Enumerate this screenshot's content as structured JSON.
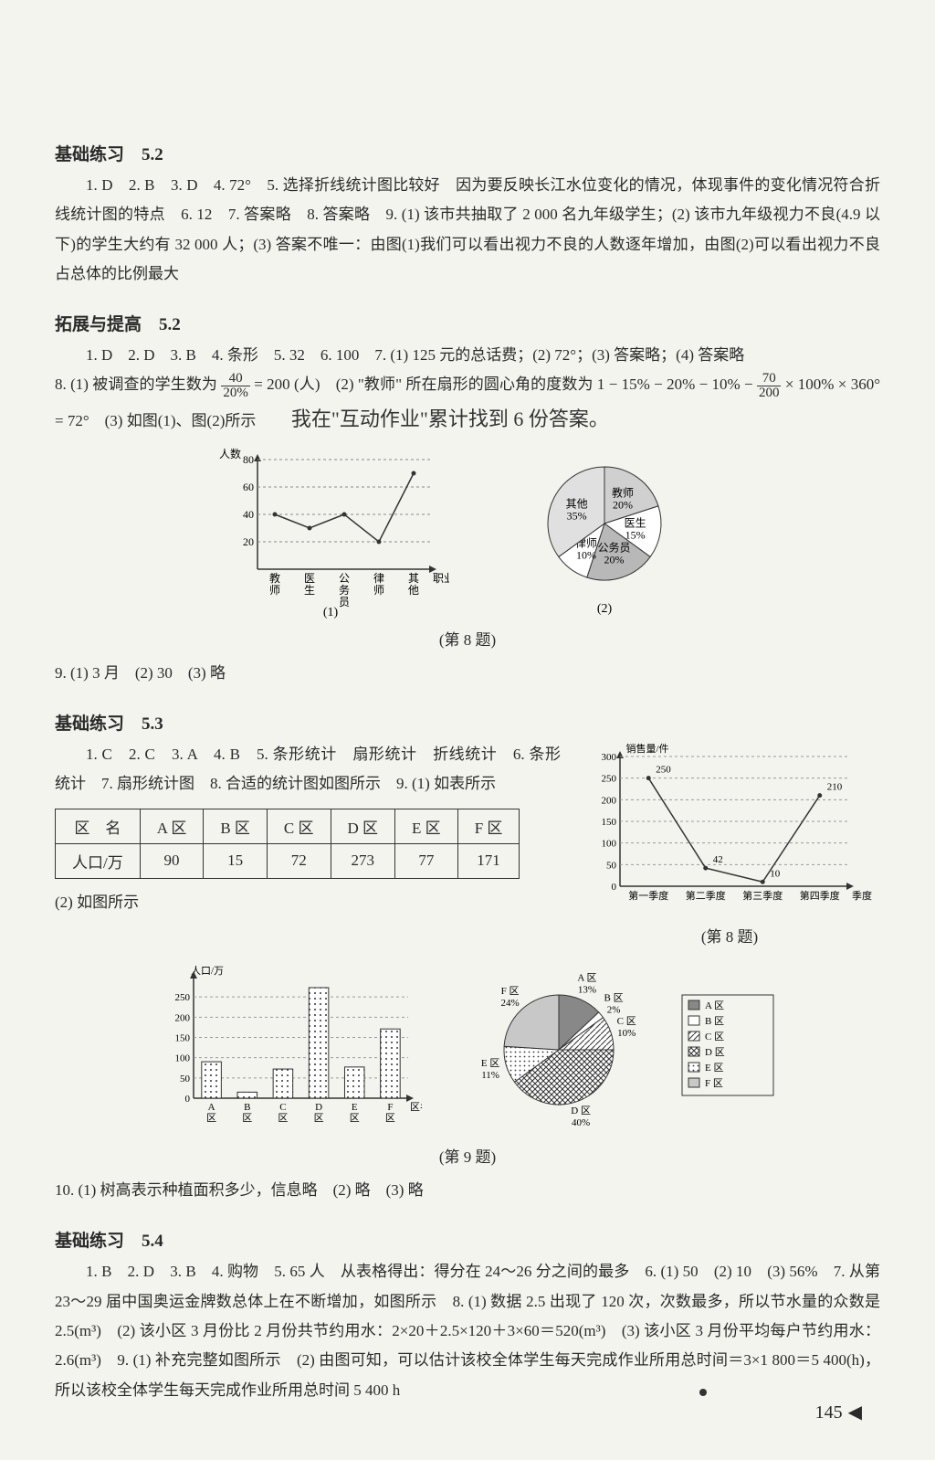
{
  "sec52": {
    "title": "基础练习　5.2",
    "body1": "1. D　2. B　3. D　4. 72°　5. 选择折线统计图比较好　因为要反映长江水位变化的情况，体现事件的变化情况符合折线统计图的特点　6. 12　7. 答案略　8. 答案略　9. (1) 该市共抽取了 2 000 名九年级学生；(2) 该市九年级视力不良(4.9 以下)的学生大约有 32 000 人；(3) 答案不唯一：由图(1)我们可以看出视力不良的人数逐年增加，由图(2)可以看出视力不良占总体的比例最大"
  },
  "ext52": {
    "title": "拓展与提高　5.2",
    "line1": "1. D　2. D　3. B　4. 条形　5. 32　6. 100　7. (1) 125 元的总话费；(2) 72°；(3) 答案略；(4) 答案略",
    "line2a": "8. (1) 被调查的学生数为 ",
    "frac1n": "40",
    "frac1d": "20%",
    "line2b": " = 200 (人)　(2) \"教师\" 所在扇形的圆心角的度数为 1 − 15% − 20% − 10% − ",
    "frac2n": "70",
    "frac2d": "200",
    "line2c": " × 100% × 360° = 72°　(3) 如图(1)、图(2)所示",
    "handnote": "我在\"互动作业\"累计找到 6 份答案。",
    "line3": "9. (1) 3 月　(2) 30　(3) 略",
    "figcap8": "(第 8 题)",
    "chart1": {
      "type": "line",
      "ylabel": "人数",
      "xlabel": "职业",
      "yticks": [
        20,
        40,
        60,
        80
      ],
      "categories": [
        "教师",
        "医生",
        "公务员",
        "律师",
        "其他"
      ],
      "values": [
        40,
        30,
        40,
        20,
        70
      ],
      "caption": "(1)",
      "line_color": "#333333",
      "grid_color": "#888888",
      "background": "#f4f4ef",
      "fontsize": 12
    },
    "chart2": {
      "type": "pie",
      "slices": [
        {
          "label": "教师",
          "sub": "20%",
          "value": 20,
          "fill": "#d0d0d0"
        },
        {
          "label": "医生",
          "sub": "15%",
          "value": 15,
          "fill": "#ffffff"
        },
        {
          "label": "公务员",
          "sub": "20%",
          "value": 20,
          "fill": "#b8b8b8"
        },
        {
          "label": "律师",
          "sub": "10%",
          "value": 10,
          "fill": "#ffffff"
        },
        {
          "label": "其他",
          "sub": "35%",
          "value": 35,
          "fill": "#e0e0e0"
        }
      ],
      "caption": "(2)",
      "stroke": "#333333",
      "fontsize": 12
    }
  },
  "sec53": {
    "title": "基础练习　5.3",
    "body1": "1. C　2. C　3. A　4. B　5. 条形统计　扇形统计　折线统计　6. 条形统计　7. 扇形统计图　8. 合适的统计图如图所示　9. (1) 如表所示",
    "table": {
      "columns": [
        "区　名",
        "A 区",
        "B 区",
        "C 区",
        "D 区",
        "E 区",
        "F 区"
      ],
      "row_label": "人口/万",
      "row": [
        90,
        15,
        72,
        273,
        77,
        171
      ]
    },
    "body2": "(2) 如图所示",
    "chart8": {
      "type": "line",
      "caption": "(第 8 题)",
      "ylabel": "销售量/件",
      "xlabel": "季度",
      "yticks": [
        50,
        100,
        150,
        200,
        250,
        300
      ],
      "categories": [
        "第一季度",
        "第二季度",
        "第三季度",
        "第四季度"
      ],
      "values": [
        250,
        42,
        10,
        210
      ],
      "value_labels": [
        "250",
        "42",
        "10",
        "210"
      ],
      "line_color": "#333333",
      "grid_color": "#999999",
      "fontsize": 11
    },
    "figcap9": "(第 9 题)",
    "chart9a": {
      "type": "bar",
      "ylabel": "人口/万",
      "xlabel": "区名",
      "yticks": [
        50,
        100,
        150,
        200,
        250
      ],
      "categories": [
        "A区",
        "B区",
        "C区",
        "D区",
        "E区",
        "F区"
      ],
      "values": [
        90,
        15,
        72,
        273,
        77,
        171
      ],
      "bar_fill": "pattern-dots",
      "bar_stroke": "#333333",
      "grid_color": "#999999",
      "fontsize": 11
    },
    "chart9b": {
      "type": "pie",
      "slices": [
        {
          "label": "A 区",
          "sub": "13%",
          "value": 13,
          "fill": "#888888"
        },
        {
          "label": "B 区",
          "sub": "2%",
          "value": 2,
          "fill": "#ffffff"
        },
        {
          "label": "C 区",
          "sub": "10%",
          "value": 10,
          "fill": "pattern-diag"
        },
        {
          "label": "D 区",
          "sub": "40%",
          "value": 40,
          "fill": "pattern-cross"
        },
        {
          "label": "E 区",
          "sub": "11%",
          "value": 11,
          "fill": "pattern-dots"
        },
        {
          "label": "F 区",
          "sub": "24%",
          "value": 24,
          "fill": "#c8c8c8"
        }
      ],
      "legend": [
        "A 区",
        "B 区",
        "C 区",
        "D 区",
        "E 区",
        "F 区"
      ],
      "stroke": "#333333",
      "fontsize": 11
    },
    "body3": "10. (1) 树高表示种植面积多少，信息略　(2) 略　(3) 略"
  },
  "sec54": {
    "title": "基础练习　5.4",
    "body1": "1. B　2. D　3. B　4. 购物　5. 65 人　从表格得出：得分在 24～26 分之间的最多　6. (1) 50　(2) 10　(3) 56%　7. 从第 23～29 届中国奥运金牌数总体上在不断增加，如图所示　8. (1) 数据 2.5 出现了 120 次，次数最多，所以节水量的众数是 2.5(m³)　(2) 该小区 3 月份比 2 月份共节约用水：2×20＋2.5×120＋3×60＝520(m³)　(3) 该小区 3 月份平均每户节约用水：2.6(m³)　9. (1) 补充完整如图所示　(2) 由图可知，可以估计该校全体学生每天完成作业所用总时间＝3×1 800＝5 400(h)，所以该校全体学生每天完成作业所用总时间 5 400 h"
  },
  "pagenum": "145"
}
